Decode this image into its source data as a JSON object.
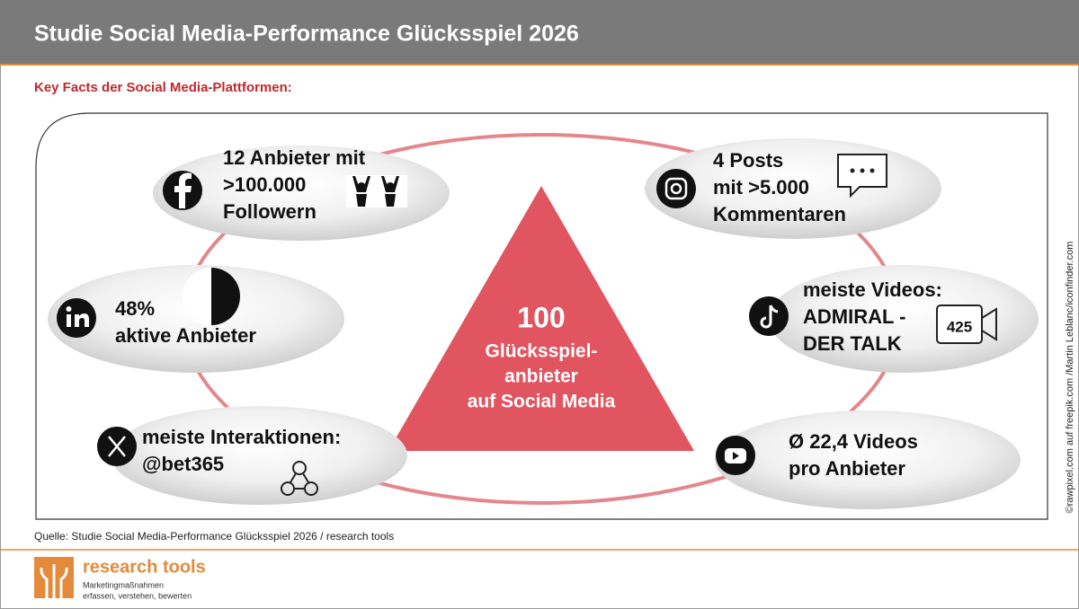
{
  "header": {
    "title": "Studie Social Media-Performance Glücksspiel 2026"
  },
  "subtitle": "Key Facts der Social Media-Plattformen:",
  "center": {
    "number": "100",
    "lines": [
      "Glücksspiel-",
      "anbieter",
      "auf Social Media"
    ]
  },
  "facts": {
    "facebook": [
      "12 Anbieter mit",
      ">100.000",
      "Followern"
    ],
    "instagram": [
      "4 Posts",
      "mit >5.000",
      "Kommentaren"
    ],
    "linkedin": [
      "48%",
      "aktive Anbieter"
    ],
    "tiktok": [
      "meiste Videos:",
      "ADMIRAL -",
      "DER TALK"
    ],
    "tiktok_icon_label": "425",
    "x": [
      "meiste Interaktionen:",
      "@bet365"
    ],
    "youtube": [
      "Ø 22,4 Videos",
      "pro Anbieter"
    ]
  },
  "credit": "©rawpixel.com auf freepik.com /Martin Leblanc/iconfinder.com",
  "source": "Quelle: Studie Social Media-Performance Glücksspiel 2026 / research tools",
  "logo": {
    "name": "research tools",
    "tagline": [
      "Marketingmaßnahmen",
      "erfassen, verstehen, bewerten"
    ]
  }
}
